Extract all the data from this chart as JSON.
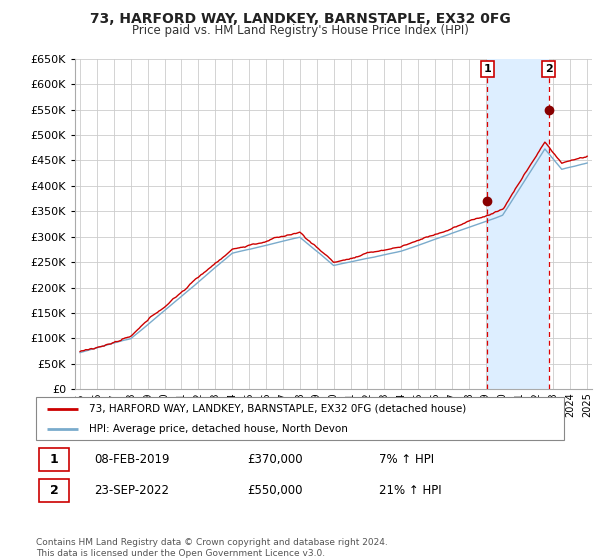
{
  "title": "73, HARFORD WAY, LANDKEY, BARNSTAPLE, EX32 0FG",
  "subtitle": "Price paid vs. HM Land Registry's House Price Index (HPI)",
  "legend_line1": "73, HARFORD WAY, LANDKEY, BARNSTAPLE, EX32 0FG (detached house)",
  "legend_line2": "HPI: Average price, detached house, North Devon",
  "annotation1_label": "1",
  "annotation1_date": "08-FEB-2019",
  "annotation1_price": "£370,000",
  "annotation1_hpi": "7% ↑ HPI",
  "annotation2_label": "2",
  "annotation2_date": "23-SEP-2022",
  "annotation2_price": "£550,000",
  "annotation2_hpi": "21% ↑ HPI",
  "footer": "Contains HM Land Registry data © Crown copyright and database right 2024.\nThis data is licensed under the Open Government Licence v3.0.",
  "red_color": "#cc0000",
  "blue_color": "#7aabcc",
  "shade_color": "#ddeeff",
  "background_color": "#ffffff",
  "grid_color": "#cccccc",
  "ylim": [
    0,
    650000
  ],
  "yticks": [
    0,
    50000,
    100000,
    150000,
    200000,
    250000,
    300000,
    350000,
    400000,
    450000,
    500000,
    550000,
    600000,
    650000
  ],
  "purchase1_year": 2019.1,
  "purchase1_price": 370000,
  "purchase2_year": 2022.73,
  "purchase2_price": 550000
}
